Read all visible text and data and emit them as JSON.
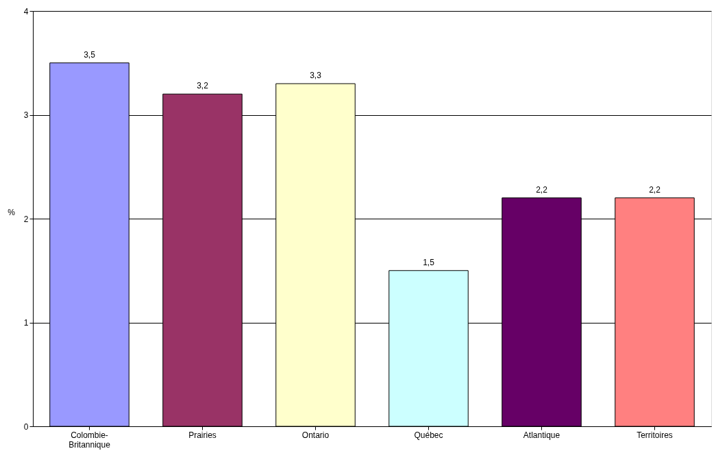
{
  "chart_data": {
    "type": "bar",
    "ylabel": "%",
    "categories": [
      "Colombie-Britannique",
      "Prairies",
      "Ontario",
      "Québec",
      "Atlantique",
      "Territoires"
    ],
    "values": [
      3.5,
      3.2,
      3.3,
      1.5,
      2.2,
      2.2
    ],
    "colors": [
      "#9999ff",
      "#993366",
      "#ffffcc",
      "#ccffff",
      "#660066",
      "#ff8080"
    ],
    "value_labels": [
      "3,5",
      "3,2",
      "3,3",
      "1,5",
      "2,2",
      "2,2"
    ],
    "ylim": [
      0,
      4
    ],
    "yticks": [
      0,
      1,
      2,
      3,
      4
    ],
    "grid": "y"
  }
}
